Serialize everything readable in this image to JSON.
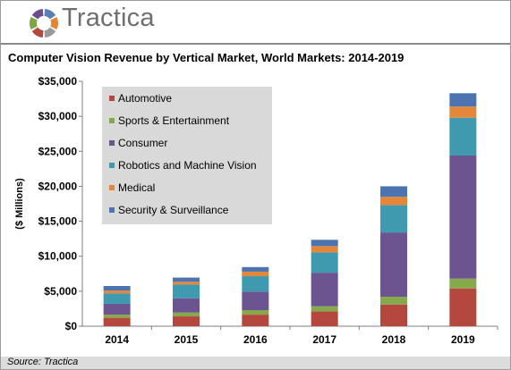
{
  "brand": {
    "name": "Tractica",
    "logo_colors": [
      "#5a7fb5",
      "#e2873a",
      "#9a9a9a",
      "#b4483f",
      "#7fa542",
      "#6a4f8a"
    ]
  },
  "source_note": "Source: Tractica",
  "chart_data": {
    "type": "bar",
    "stacked": true,
    "title": "Computer Vision Revenue by Vertical Market, World Markets: 2014-2019",
    "xlabel": "",
    "ylabel": "($ Millions)",
    "ylim": [
      0,
      35000
    ],
    "yticks": [
      "$0",
      "$5,000",
      "$10,000",
      "$15,000",
      "$20,000",
      "$25,000",
      "$30,000",
      "$35,000"
    ],
    "categories": [
      "2014",
      "2015",
      "2016",
      "2017",
      "2018",
      "2019"
    ],
    "legend_position": "top-left",
    "grid": false,
    "series": [
      {
        "name": "Automotive",
        "color": "#b4483f",
        "values": [
          1200,
          1400,
          1650,
          2100,
          3100,
          5400
        ]
      },
      {
        "name": "Sports & Entertainment",
        "color": "#86a94c",
        "values": [
          450,
          550,
          650,
          750,
          1100,
          1400
        ]
      },
      {
        "name": "Consumer",
        "color": "#6b548f",
        "values": [
          1550,
          2050,
          2650,
          4800,
          9200,
          17600
        ]
      },
      {
        "name": "Robotics and Machine Vision",
        "color": "#3f9ab0",
        "values": [
          1500,
          1950,
          2200,
          2900,
          3900,
          5400
        ]
      },
      {
        "name": "Medical",
        "color": "#e4873b",
        "values": [
          400,
          400,
          650,
          900,
          1200,
          1600
        ]
      },
      {
        "name": "Security & Surveillance",
        "color": "#4c74b0",
        "values": [
          650,
          600,
          650,
          900,
          1500,
          1900
        ]
      }
    ]
  }
}
